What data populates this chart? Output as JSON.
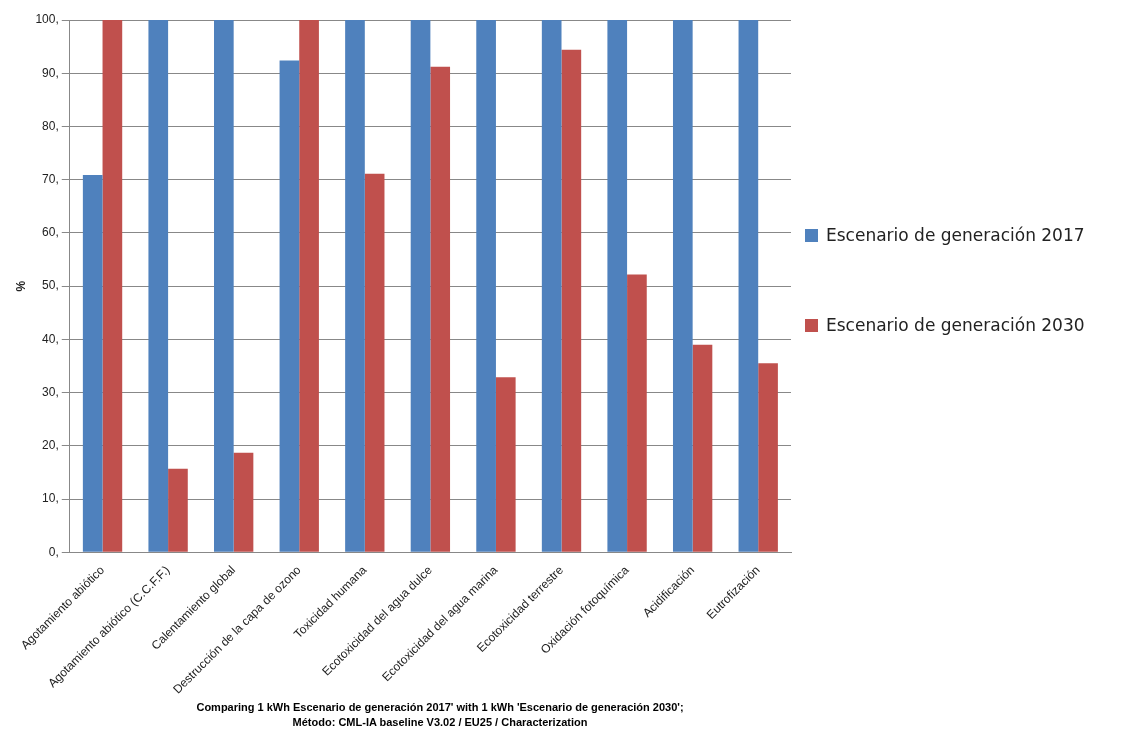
{
  "chart_data": {
    "type": "bar",
    "categories": [
      "Agotamiento abiótico",
      "Agotamiento abiótico (C.C.F.F.)",
      "Calentamiento global",
      "Destrucción de la capa de ozono",
      "Toxicidad humana",
      "Ecotoxicidad del agua dulce",
      "Ecotoxicidad del agua marina",
      "Ecotoxicidad terrestre",
      "Oxidación fotoquímica",
      "Acidificación",
      "Eutrofización"
    ],
    "series": [
      {
        "name": "Escenario de generación 2017",
        "color": "#4f81bd",
        "values": [
          70.9,
          100,
          100,
          92.4,
          100,
          100,
          100,
          100,
          100,
          100,
          100
        ]
      },
      {
        "name": "Escenario de generación 2030",
        "color": "#c0504d",
        "values": [
          100,
          15.7,
          18.7,
          100,
          71.1,
          91.2,
          32.9,
          94.4,
          52.2,
          39.0,
          35.5
        ]
      }
    ],
    "ylabel": "%",
    "ylim": [
      0,
      100
    ],
    "yticks": [
      {
        "value": 0,
        "label": "0,"
      },
      {
        "value": 10,
        "label": "10,"
      },
      {
        "value": 20,
        "label": "20,"
      },
      {
        "value": 30,
        "label": "30,"
      },
      {
        "value": 40,
        "label": "40,"
      },
      {
        "value": 50,
        "label": "50,"
      },
      {
        "value": 60,
        "label": "60,"
      },
      {
        "value": 70,
        "label": "70,"
      },
      {
        "value": 80,
        "label": "80,"
      },
      {
        "value": 90,
        "label": "90,"
      },
      {
        "value": 100,
        "label": "100,"
      }
    ],
    "grid": "y",
    "legend": "right",
    "annotations": [
      "Comparing 1 kWh Escenario de generación 2017' with 1 kWh 'Escenario de generación 2030';",
      "Método: CML-IA baseline V3.02 / EU25 / Characterization"
    ]
  }
}
